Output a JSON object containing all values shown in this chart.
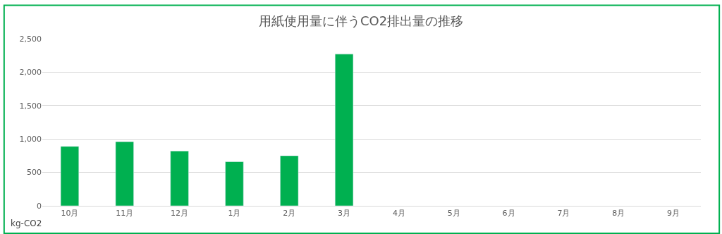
{
  "chart_data": {
    "type": "bar",
    "title": "用紙使用量に伴うCO2排出量の推移",
    "ylabel": "kg-CO2",
    "categories": [
      "10月",
      "11月",
      "12月",
      "1月",
      "2月",
      "3月",
      "4月",
      "5月",
      "6月",
      "7月",
      "8月",
      "9月"
    ],
    "values": [
      890,
      960,
      820,
      660,
      750,
      2270,
      null,
      null,
      null,
      null,
      null,
      null
    ],
    "color": "#00b050",
    "ylim": [
      0,
      2500
    ],
    "yticks": [
      0,
      {
        "value": 500,
        "label": "500"
      },
      {
        "value": 1000,
        "label": "1,000"
      },
      {
        "value": 1500,
        "label": "1,500"
      },
      {
        "value": 2000,
        "label": "2,000"
      },
      {
        "value": 2500,
        "label": "2,500"
      }
    ],
    "grid": "y"
  }
}
